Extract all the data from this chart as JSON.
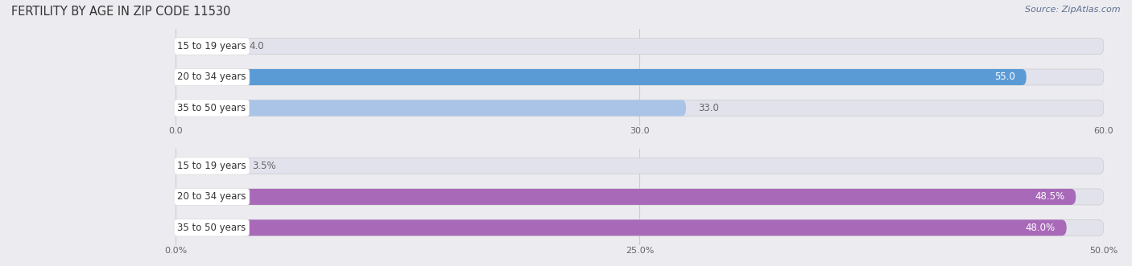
{
  "title": "FERTILITY BY AGE IN ZIP CODE 11530",
  "source": "Source: ZipAtlas.com",
  "top_chart": {
    "categories": [
      "15 to 19 years",
      "20 to 34 years",
      "35 to 50 years"
    ],
    "values": [
      4.0,
      55.0,
      33.0
    ],
    "value_labels": [
      "4.0",
      "55.0",
      "33.0"
    ],
    "xlim": [
      0.0,
      60.0
    ],
    "xticks": [
      0.0,
      30.0,
      60.0
    ],
    "xtick_labels": [
      "0.0",
      "30.0",
      "60.0"
    ],
    "bar_color_light": "#aac4e8",
    "bar_color_dark": "#5b9bd5",
    "label_inside_color": "#ffffff",
    "label_outside_color": "#666666",
    "label_threshold": 48.0
  },
  "bottom_chart": {
    "categories": [
      "15 to 19 years",
      "20 to 34 years",
      "35 to 50 years"
    ],
    "values": [
      3.5,
      48.5,
      48.0
    ],
    "value_labels": [
      "3.5%",
      "48.5%",
      "48.0%"
    ],
    "xlim": [
      0.0,
      50.0
    ],
    "xticks": [
      0.0,
      25.0,
      50.0
    ],
    "xtick_labels": [
      "0.0%",
      "25.0%",
      "50.0%"
    ],
    "bar_color_light": "#d4add4",
    "bar_color_dark": "#a86ab8",
    "label_inside_color": "#ffffff",
    "label_outside_color": "#666666",
    "label_threshold": 40.0
  },
  "fig_bg_color": "#ebebf0",
  "bar_bg_color": "#e2e2ec",
  "bar_height": 0.52,
  "label_fontsize": 8.5,
  "cat_fontsize": 8.5,
  "tick_fontsize": 8,
  "title_fontsize": 10.5,
  "source_fontsize": 8
}
